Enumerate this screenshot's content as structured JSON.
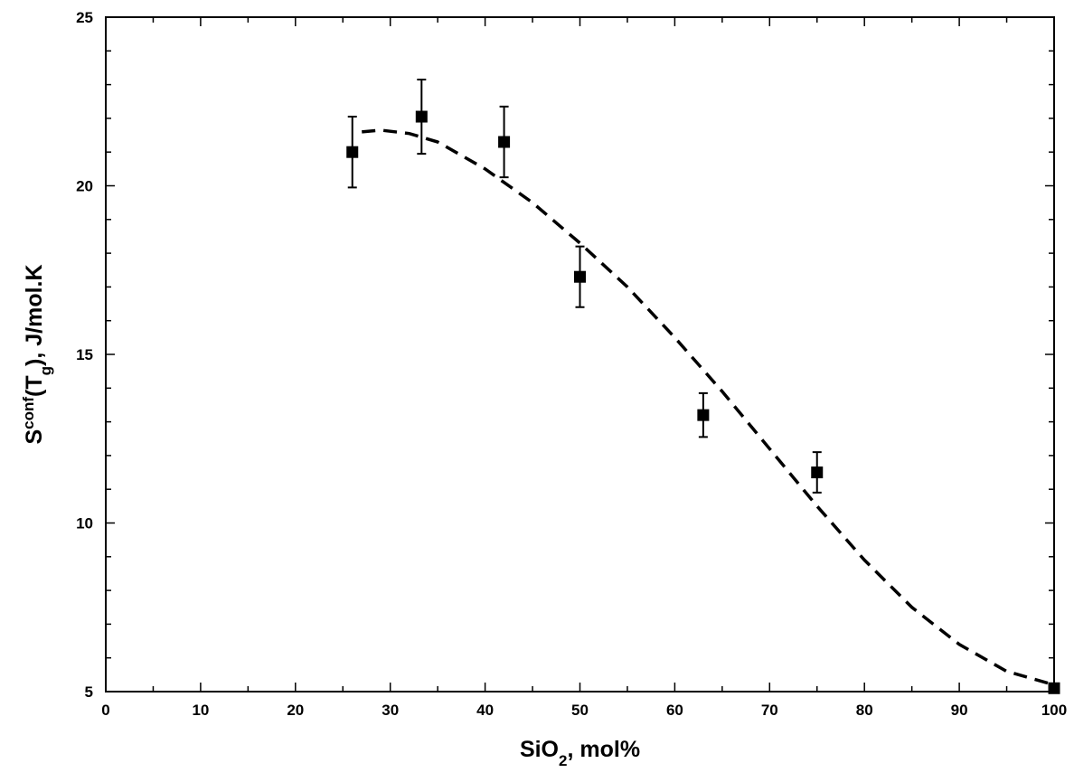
{
  "chart_data": {
    "type": "scatter",
    "xlabel": [
      {
        "text": "SiO"
      },
      {
        "text": "2",
        "shift": "sub"
      },
      {
        "text": ", mol%"
      }
    ],
    "ylabel": [
      {
        "text": "S"
      },
      {
        "text": "conf",
        "shift": "super"
      },
      {
        "text": "(T"
      },
      {
        "text": "g",
        "shift": "sub"
      },
      {
        "text": "), J/mol.K"
      }
    ],
    "xlim": [
      0,
      100
    ],
    "ylim": [
      5,
      25
    ],
    "xticks": [
      0,
      10,
      20,
      30,
      40,
      50,
      60,
      70,
      80,
      90,
      100
    ],
    "yticks": [
      5,
      10,
      15,
      20,
      25
    ],
    "xminorticks": [
      5,
      15,
      25,
      35,
      45,
      55,
      65,
      75,
      85,
      95
    ],
    "yminorticks": [
      6,
      7,
      8,
      9,
      11,
      12,
      13,
      14,
      16,
      17,
      18,
      19,
      21,
      22,
      23,
      24
    ],
    "series": [
      {
        "type": "scatter",
        "color": "#000000",
        "marker": "square",
        "x": [
          26,
          33.3,
          42,
          50,
          63,
          75,
          100
        ],
        "values": [
          21.0,
          22.05,
          21.3,
          17.3,
          13.2,
          11.5,
          5.1
        ],
        "errors": [
          1.05,
          1.1,
          1.05,
          0.9,
          0.65,
          0.6,
          null
        ]
      },
      {
        "type": "line",
        "color": "#000000",
        "linestyle": "dashed",
        "x": [
          27,
          29,
          32,
          35,
          40,
          45,
          50,
          55,
          60,
          65,
          70,
          75,
          80,
          85,
          90,
          95,
          100
        ],
        "values": [
          21.6,
          21.65,
          21.55,
          21.3,
          20.5,
          19.5,
          18.3,
          17.0,
          15.5,
          13.9,
          12.2,
          10.5,
          8.9,
          7.5,
          6.4,
          5.6,
          5.2
        ]
      }
    ]
  }
}
